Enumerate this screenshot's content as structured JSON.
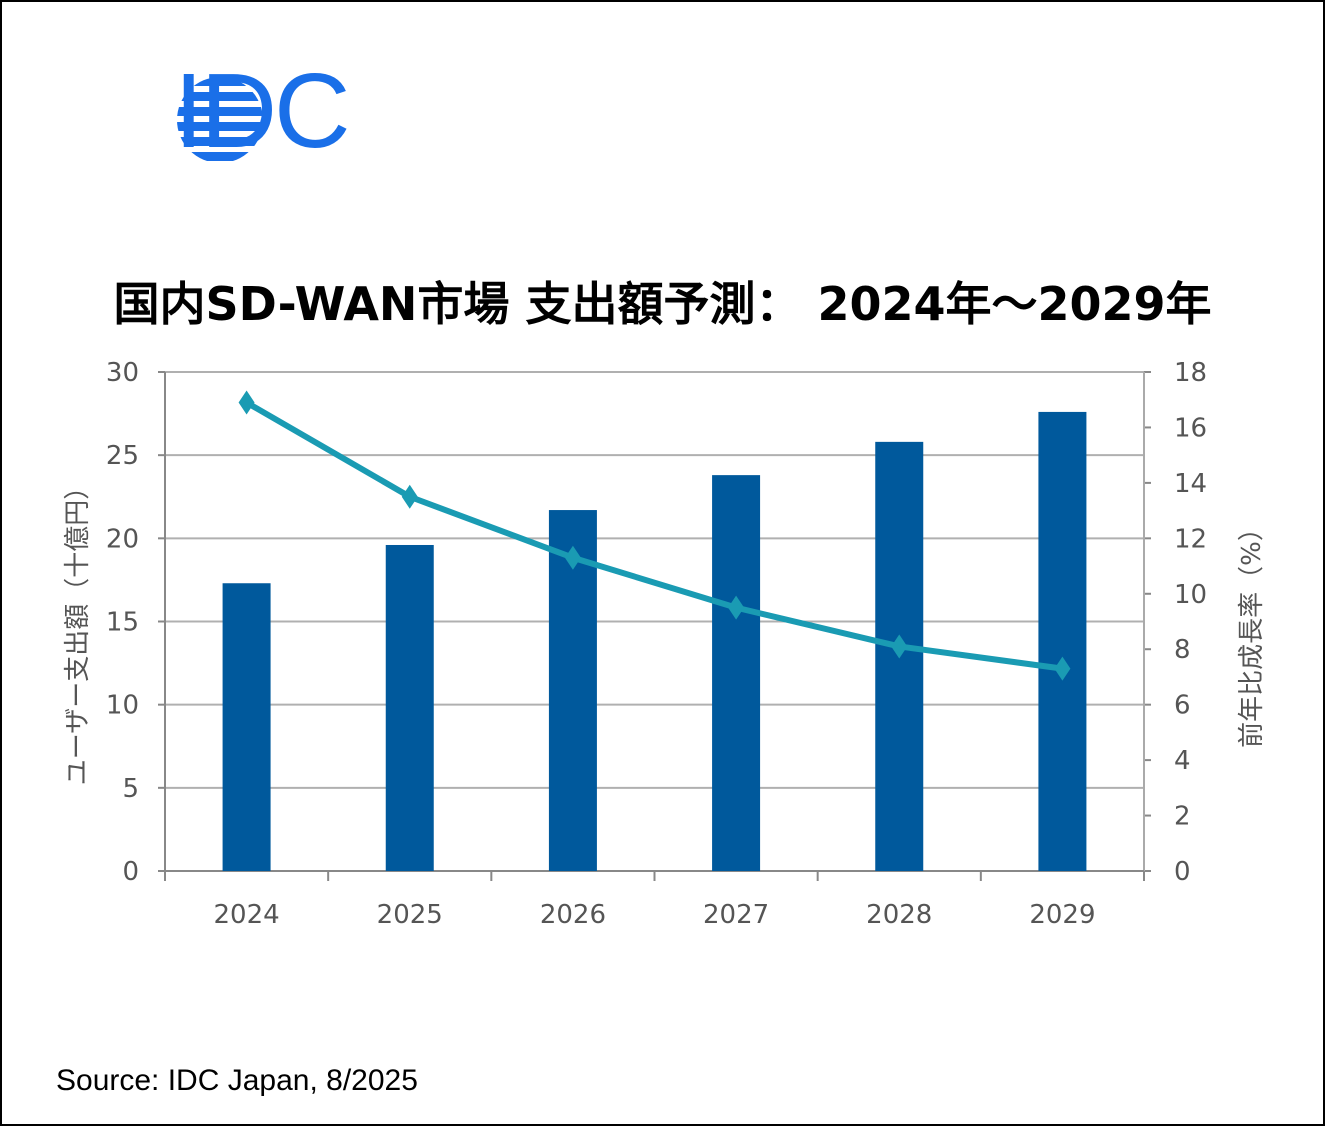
{
  "logo": {
    "text": "IDC",
    "color": "#1a6fe8"
  },
  "title": "国内SD-WAN市場 支出額予測： 2024年～2029年",
  "source": "Source: IDC Japan, 8/2025",
  "chart_data": {
    "type": "bar+line",
    "title": "国内SD-WAN市場 支出額予測： 2024年～2029年",
    "categories": [
      "2024",
      "2025",
      "2026",
      "2027",
      "2028",
      "2029"
    ],
    "series": [
      {
        "type": "bar",
        "axis": "left",
        "color": "#00599c",
        "values": [
          17.3,
          19.6,
          21.7,
          23.8,
          25.8,
          27.6
        ]
      },
      {
        "type": "line",
        "axis": "right",
        "marker": "diamond",
        "color": "#1a9bb3",
        "values": [
          16.9,
          13.5,
          11.3,
          9.5,
          8.1,
          7.3
        ]
      }
    ],
    "ylabel": "ユーザー支出額（十億円）",
    "y2label": "前年比成長率（%）",
    "ylim": [
      0,
      30
    ],
    "yticks": [
      "0",
      "5",
      "10",
      "15",
      "20",
      "25",
      "30"
    ],
    "y2lim": [
      0,
      18
    ],
    "y2ticks": [
      "0",
      "2",
      "4",
      "6",
      "8",
      "10",
      "12",
      "14",
      "16",
      "18"
    ],
    "grid": true,
    "legend": "none"
  }
}
